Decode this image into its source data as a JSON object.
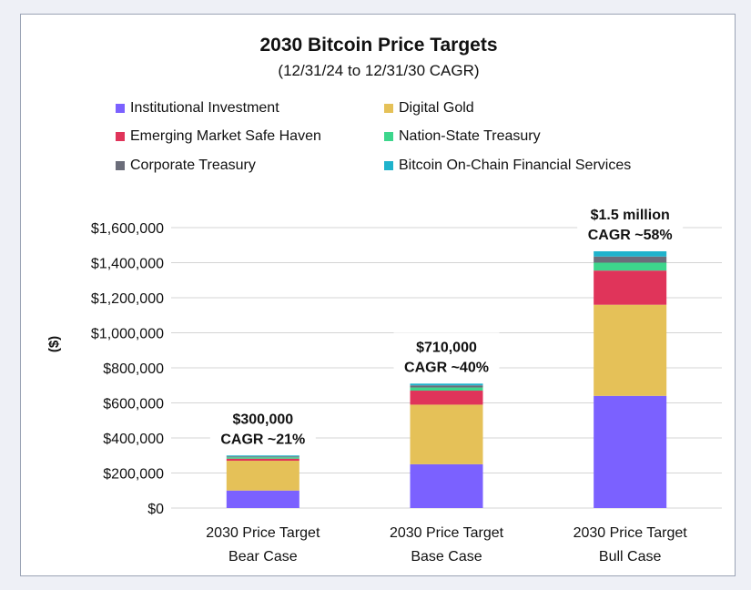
{
  "chart_data": {
    "type": "bar",
    "stacked": true,
    "title": "2030 Bitcoin Price Targets",
    "subtitle": "(12/31/24 to 12/31/30 CAGR)",
    "ylabel": "($)",
    "xlabel": "",
    "ylim": [
      0,
      1600000
    ],
    "y_ticks": [
      0,
      200000,
      400000,
      600000,
      800000,
      1000000,
      1200000,
      1400000,
      1600000
    ],
    "y_tick_labels": [
      "$0",
      "$200,000",
      "$400,000",
      "$600,000",
      "$800,000",
      "$1,000,000",
      "$1,200,000",
      "$1,400,000",
      "$1,600,000"
    ],
    "grid": true,
    "legend_position": "top",
    "categories": [
      [
        "2030 Price Target",
        "Bear Case"
      ],
      [
        "2030 Price Target",
        "Base Case"
      ],
      [
        "2030 Price Target",
        "Bull Case"
      ]
    ],
    "series": [
      {
        "name": "Institutional Investment",
        "color": "#7b61ff",
        "values": [
          100000,
          250000,
          640000
        ]
      },
      {
        "name": "Digital Gold",
        "color": "#e5c158",
        "values": [
          170000,
          340000,
          520000
        ]
      },
      {
        "name": "Emerging Market Safe Haven",
        "color": "#e0345a",
        "values": [
          12000,
          80000,
          195000
        ]
      },
      {
        "name": "Nation-State Treasury",
        "color": "#3dd68c",
        "values": [
          8000,
          18000,
          45000
        ]
      },
      {
        "name": "Corporate Treasury",
        "color": "#6b6d7a",
        "values": [
          5000,
          12000,
          35000
        ]
      },
      {
        "name": "Bitcoin On-Chain Financial Services",
        "color": "#1fb3cc",
        "values": [
          5000,
          10000,
          30000
        ]
      }
    ],
    "annotations": [
      {
        "line1": "$300,000",
        "line2": "CAGR ~21%"
      },
      {
        "line1": "$710,000",
        "line2": "CAGR ~40%"
      },
      {
        "line1": "$1.5 million",
        "line2": "CAGR ~58%"
      }
    ]
  }
}
